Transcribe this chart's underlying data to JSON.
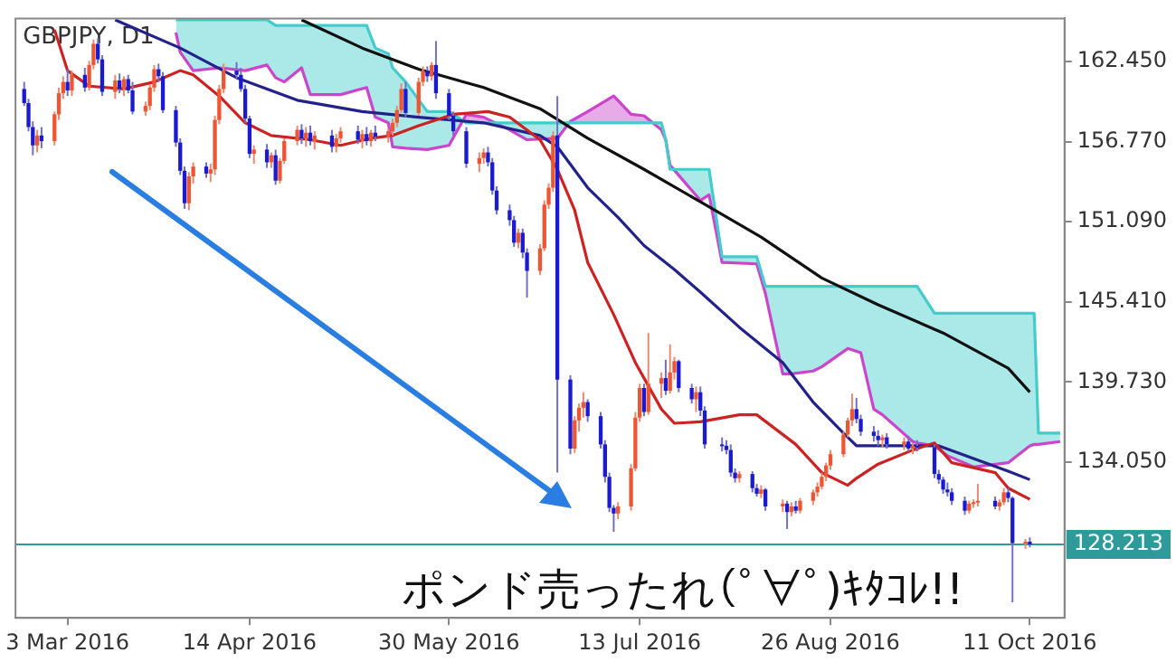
{
  "chart_data": {
    "type": "candlestick",
    "title": "GBPJPY, D1",
    "x": [
      "2016-02-22",
      "2016-02-23",
      "2016-02-24",
      "2016-02-25",
      "2016-02-26",
      "2016-02-29",
      "2016-03-01",
      "2016-03-02",
      "2016-03-03",
      "2016-03-04",
      "2016-03-07",
      "2016-03-08",
      "2016-03-09",
      "2016-03-10",
      "2016-03-11",
      "2016-03-14",
      "2016-03-15",
      "2016-03-16",
      "2016-03-17",
      "2016-03-18",
      "2016-03-21",
      "2016-03-22",
      "2016-03-23",
      "2016-03-24",
      "2016-03-25",
      "2016-03-28",
      "2016-03-29",
      "2016-03-30",
      "2016-03-31",
      "2016-04-01",
      "2016-04-04",
      "2016-04-05",
      "2016-04-06",
      "2016-04-07",
      "2016-04-08",
      "2016-04-11",
      "2016-04-12",
      "2016-04-13",
      "2016-04-14",
      "2016-04-15",
      "2016-04-18",
      "2016-04-19",
      "2016-04-20",
      "2016-04-21",
      "2016-04-22",
      "2016-04-25",
      "2016-04-26",
      "2016-04-27",
      "2016-04-28",
      "2016-04-29",
      "2016-05-03",
      "2016-05-04",
      "2016-05-05",
      "2016-05-09",
      "2016-05-10",
      "2016-05-11",
      "2016-05-12",
      "2016-05-13",
      "2016-05-16",
      "2016-05-17",
      "2016-05-18",
      "2016-05-19",
      "2016-05-20",
      "2016-05-23",
      "2016-05-24",
      "2016-05-25",
      "2016-05-26",
      "2016-05-27",
      "2016-05-30",
      "2016-05-31",
      "2016-06-03",
      "2016-06-06",
      "2016-06-07",
      "2016-06-08",
      "2016-06-09",
      "2016-06-10",
      "2016-06-13",
      "2016-06-14",
      "2016-06-15",
      "2016-06-16",
      "2016-06-17",
      "2016-06-20",
      "2016-06-21",
      "2016-06-22",
      "2016-06-23",
      "2016-06-24",
      "2016-06-27",
      "2016-06-28",
      "2016-06-29",
      "2016-06-30",
      "2016-07-01",
      "2016-07-04",
      "2016-07-05",
      "2016-07-06",
      "2016-07-07",
      "2016-07-08",
      "2016-07-11",
      "2016-07-12",
      "2016-07-13",
      "2016-07-14",
      "2016-07-15",
      "2016-07-18",
      "2016-07-19",
      "2016-07-20",
      "2016-07-21",
      "2016-07-22",
      "2016-07-25",
      "2016-07-26",
      "2016-07-27",
      "2016-07-28",
      "2016-08-01",
      "2016-08-02",
      "2016-08-03",
      "2016-08-04",
      "2016-08-05",
      "2016-08-08",
      "2016-08-09",
      "2016-08-10",
      "2016-08-11",
      "2016-08-15",
      "2016-08-16",
      "2016-08-17",
      "2016-08-18",
      "2016-08-19",
      "2016-08-22",
      "2016-08-23",
      "2016-08-24",
      "2016-08-25",
      "2016-08-26",
      "2016-08-29",
      "2016-08-30",
      "2016-08-31",
      "2016-09-01",
      "2016-09-02",
      "2016-09-05",
      "2016-09-06",
      "2016-09-07",
      "2016-09-08",
      "2016-09-12",
      "2016-09-13",
      "2016-09-14",
      "2016-09-15",
      "2016-09-19",
      "2016-09-20",
      "2016-09-21",
      "2016-09-22",
      "2016-09-23",
      "2016-09-26",
      "2016-09-27",
      "2016-09-28",
      "2016-09-29",
      "2016-10-03",
      "2016-10-04",
      "2016-10-05",
      "2016-10-06",
      "2016-10-07",
      "2016-10-10",
      "2016-10-11"
    ],
    "ohlc": [
      [
        160.5,
        161.0,
        159.3,
        159.5
      ],
      [
        159.5,
        159.8,
        157.5,
        157.8
      ],
      [
        157.8,
        158.2,
        155.8,
        156.5
      ],
      [
        156.5,
        157.6,
        156.0,
        157.2
      ],
      [
        157.2,
        157.8,
        156.3,
        156.8
      ],
      [
        156.8,
        158.9,
        156.5,
        158.7
      ],
      [
        158.7,
        160.6,
        158.3,
        160.2
      ],
      [
        160.2,
        161.4,
        159.8,
        161.0
      ],
      [
        161.0,
        161.9,
        160.0,
        160.4
      ],
      [
        160.4,
        161.8,
        160.0,
        161.5
      ],
      [
        161.5,
        162.0,
        160.3,
        160.6
      ],
      [
        160.6,
        162.5,
        160.4,
        162.2
      ],
      [
        162.2,
        164.0,
        161.9,
        163.7
      ],
      [
        163.7,
        164.1,
        162.3,
        162.6
      ],
      [
        162.6,
        162.9,
        160.0,
        160.3
      ],
      [
        160.3,
        161.5,
        159.8,
        161.1
      ],
      [
        161.1,
        161.6,
        160.2,
        160.5
      ],
      [
        160.5,
        161.4,
        160.0,
        161.2
      ],
      [
        161.2,
        161.5,
        160.2,
        160.4
      ],
      [
        160.4,
        161.0,
        158.7,
        158.9
      ],
      [
        158.9,
        159.6,
        158.6,
        159.3
      ],
      [
        159.3,
        160.8,
        159.0,
        160.6
      ],
      [
        160.6,
        162.2,
        160.3,
        161.9
      ],
      [
        161.9,
        162.3,
        161.0,
        161.4
      ],
      [
        161.4,
        161.7,
        158.8,
        159.0
      ],
      [
        159.0,
        159.3,
        156.4,
        156.7
      ],
      [
        156.7,
        157.0,
        154.4,
        154.7
      ],
      [
        154.7,
        155.0,
        152.0,
        152.4
      ],
      [
        152.4,
        154.6,
        151.9,
        154.3
      ],
      [
        154.3,
        155.3,
        153.8,
        155.0
      ],
      [
        155.0,
        155.3,
        154.2,
        154.5
      ],
      [
        154.5,
        155.2,
        153.9,
        154.8
      ],
      [
        154.8,
        158.6,
        154.4,
        158.3
      ],
      [
        158.3,
        160.8,
        158.0,
        160.5
      ],
      [
        160.5,
        162.3,
        160.2,
        161.8
      ],
      [
        161.8,
        162.4,
        161.2,
        161.5
      ],
      [
        161.5,
        162.0,
        160.3,
        160.5
      ],
      [
        160.5,
        160.8,
        158.1,
        158.4
      ],
      [
        158.4,
        158.6,
        155.6,
        155.9
      ],
      [
        155.9,
        156.5,
        155.2,
        156.2
      ],
      [
        156.2,
        156.6,
        154.9,
        155.3
      ],
      [
        155.3,
        156.0,
        154.9,
        155.8
      ],
      [
        155.8,
        156.2,
        153.7,
        154.0
      ],
      [
        154.0,
        155.6,
        153.8,
        155.4
      ],
      [
        155.4,
        157.0,
        155.2,
        156.8
      ],
      [
        156.8,
        157.9,
        156.5,
        157.6
      ],
      [
        157.6,
        158.0,
        156.6,
        157.0
      ],
      [
        157.0,
        157.8,
        156.4,
        157.4
      ],
      [
        157.4,
        157.9,
        156.5,
        156.8
      ],
      [
        156.8,
        157.5,
        156.2,
        157.2
      ],
      [
        157.2,
        157.6,
        156.0,
        156.4
      ],
      [
        156.4,
        157.3,
        156.0,
        157.0
      ],
      [
        157.0,
        157.8,
        156.7,
        157.5
      ],
      [
        157.5,
        157.9,
        156.6,
        156.9
      ],
      [
        156.9,
        157.6,
        156.3,
        157.3
      ],
      [
        157.3,
        157.8,
        156.5,
        156.8
      ],
      [
        156.8,
        157.6,
        156.4,
        157.4
      ],
      [
        157.4,
        157.9,
        156.8,
        157.1
      ],
      [
        157.1,
        157.7,
        156.7,
        157.5
      ],
      [
        157.5,
        158.4,
        157.2,
        158.1
      ],
      [
        158.1,
        159.3,
        157.8,
        159.0
      ],
      [
        159.0,
        160.9,
        158.8,
        160.5
      ],
      [
        160.5,
        161.0,
        158.5,
        158.8
      ],
      [
        158.8,
        161.3,
        158.6,
        161.0
      ],
      [
        161.0,
        162.1,
        160.7,
        161.8
      ],
      [
        161.8,
        162.1,
        161.0,
        161.4
      ],
      [
        161.4,
        162.4,
        161.1,
        162.2
      ],
      [
        162.2,
        163.9,
        159.8,
        160.2
      ],
      [
        160.2,
        160.5,
        158.3,
        158.6
      ],
      [
        158.6,
        158.9,
        157.2,
        157.5
      ],
      [
        157.5,
        157.8,
        154.9,
        155.2
      ],
      [
        155.2,
        156.0,
        154.6,
        155.6
      ],
      [
        155.6,
        156.3,
        155.2,
        156.0
      ],
      [
        156.0,
        156.4,
        155.0,
        155.3
      ],
      [
        155.3,
        155.6,
        153.0,
        153.3
      ],
      [
        153.3,
        153.6,
        151.6,
        151.9
      ],
      [
        151.9,
        152.3,
        150.8,
        151.2
      ],
      [
        151.2,
        151.5,
        149.3,
        149.6
      ],
      [
        149.6,
        150.6,
        149.2,
        150.3
      ],
      [
        150.3,
        150.6,
        148.5,
        148.9
      ],
      [
        148.9,
        149.2,
        145.7,
        147.6
      ],
      [
        147.6,
        149.5,
        147.3,
        149.2
      ],
      [
        149.2,
        152.6,
        149.0,
        152.3
      ],
      [
        152.3,
        153.8,
        152.0,
        153.5
      ],
      [
        153.5,
        157.5,
        153.2,
        157.2
      ],
      [
        157.2,
        160.0,
        133.3,
        139.9
      ],
      [
        139.9,
        140.2,
        134.6,
        135.0
      ],
      [
        135.0,
        137.3,
        134.7,
        137.0
      ],
      [
        137.0,
        138.2,
        136.2,
        137.9
      ],
      [
        137.9,
        139.0,
        137.2,
        138.3
      ],
      [
        138.3,
        138.5,
        136.9,
        137.3
      ],
      [
        137.3,
        137.6,
        135.0,
        135.3
      ],
      [
        135.3,
        135.6,
        132.6,
        133.0
      ],
      [
        133.0,
        133.3,
        130.5,
        130.8
      ],
      [
        130.8,
        131.0,
        129.1,
        130.4
      ],
      [
        130.4,
        131.2,
        130.0,
        130.9
      ],
      [
        130.9,
        133.9,
        130.6,
        133.6
      ],
      [
        133.6,
        137.6,
        133.4,
        137.2
      ],
      [
        137.2,
        139.6,
        136.9,
        139.3
      ],
      [
        139.3,
        139.6,
        137.3,
        137.6
      ],
      [
        137.6,
        143.2,
        137.4,
        139.6
      ],
      [
        139.6,
        140.4,
        138.6,
        140.0
      ],
      [
        140.0,
        141.3,
        138.8,
        139.1
      ],
      [
        139.1,
        142.4,
        138.9,
        140.4
      ],
      [
        140.4,
        141.5,
        139.9,
        141.2
      ],
      [
        141.2,
        141.3,
        139.0,
        139.3
      ],
      [
        139.3,
        139.6,
        138.2,
        138.5
      ],
      [
        138.5,
        139.4,
        137.6,
        139.0
      ],
      [
        139.0,
        139.4,
        137.3,
        137.7
      ],
      [
        137.7,
        138.0,
        135.0,
        135.3
      ],
      [
        135.3,
        135.8,
        134.8,
        135.2
      ],
      [
        135.2,
        135.6,
        134.6,
        134.9
      ],
      [
        134.9,
        135.3,
        133.0,
        133.3
      ],
      [
        133.3,
        133.6,
        132.6,
        132.9
      ],
      [
        132.9,
        133.4,
        132.6,
        133.2
      ],
      [
        133.2,
        133.4,
        131.9,
        132.2
      ],
      [
        132.2,
        132.5,
        131.6,
        131.8
      ],
      [
        131.8,
        132.4,
        131.5,
        132.1
      ],
      [
        132.1,
        132.2,
        130.6,
        130.9
      ],
      [
        130.9,
        131.4,
        130.5,
        131.1
      ],
      [
        131.1,
        131.3,
        129.3,
        130.5
      ],
      [
        130.5,
        131.2,
        130.2,
        130.9
      ],
      [
        130.9,
        131.3,
        130.4,
        130.6
      ],
      [
        130.6,
        131.5,
        130.4,
        131.3
      ],
      [
        131.3,
        132.1,
        131.0,
        131.9
      ],
      [
        131.9,
        132.6,
        131.6,
        132.3
      ],
      [
        132.3,
        133.3,
        132.1,
        133.0
      ],
      [
        133.0,
        134.0,
        132.7,
        133.8
      ],
      [
        133.8,
        134.9,
        133.5,
        134.6
      ],
      [
        134.6,
        136.2,
        134.4,
        136.0
      ],
      [
        136.0,
        137.2,
        135.8,
        137.0
      ],
      [
        137.0,
        138.9,
        136.6,
        137.8
      ],
      [
        137.8,
        138.6,
        136.8,
        137.1
      ],
      [
        137.1,
        137.4,
        135.9,
        136.2
      ],
      [
        136.2,
        136.6,
        135.5,
        135.9
      ],
      [
        135.9,
        136.3,
        135.2,
        135.6
      ],
      [
        135.6,
        136.0,
        135.1,
        135.8
      ],
      [
        135.8,
        136.1,
        135.0,
        135.3
      ],
      [
        135.3,
        135.8,
        134.9,
        135.5
      ],
      [
        135.5,
        135.9,
        134.8,
        135.0
      ],
      [
        135.0,
        135.4,
        134.6,
        135.2
      ],
      [
        135.2,
        135.6,
        134.8,
        135.1
      ],
      [
        135.1,
        135.3,
        132.9,
        133.2
      ],
      [
        133.2,
        133.5,
        132.5,
        132.8
      ],
      [
        132.8,
        133.0,
        131.8,
        132.1
      ],
      [
        132.1,
        132.6,
        131.6,
        131.9
      ],
      [
        131.9,
        132.2,
        131.0,
        131.3
      ],
      [
        131.3,
        131.6,
        130.3,
        130.6
      ],
      [
        130.6,
        131.3,
        130.4,
        131.1
      ],
      [
        131.1,
        131.4,
        130.8,
        131.2
      ],
      [
        131.2,
        132.5,
        130.9,
        131.3
      ],
      [
        131.3,
        131.6,
        130.7,
        130.9
      ],
      [
        130.9,
        131.4,
        130.6,
        131.2
      ],
      [
        131.2,
        132.2,
        131.0,
        131.9
      ],
      [
        131.9,
        132.2,
        131.2,
        131.5
      ],
      [
        131.5,
        131.6,
        124.1,
        128.3
      ],
      [
        128.3,
        128.6,
        127.9,
        128.4
      ],
      [
        128.4,
        128.7,
        128.0,
        128.2
      ]
    ],
    "series": [
      {
        "type": "line",
        "color": "#cc44cc",
        "x": [
          "2016-03-28",
          "2016-03-29",
          "2016-04-01",
          "2016-04-07",
          "2016-04-13",
          "2016-04-18",
          "2016-04-20",
          "2016-04-22",
          "2016-04-26",
          "2016-04-28",
          "2016-05-05",
          "2016-05-11",
          "2016-05-13",
          "2016-05-16",
          "2016-05-17",
          "2016-05-20",
          "2016-05-25",
          "2016-05-30",
          "2016-06-03",
          "2016-06-07",
          "2016-06-13",
          "2016-06-17",
          "2016-06-24",
          "2016-06-27",
          "2016-07-01",
          "2016-07-07",
          "2016-07-11",
          "2016-07-14",
          "2016-07-18",
          "2016-07-19",
          "2016-07-20",
          "2016-07-27",
          "2016-07-29",
          "2016-08-01",
          "2016-08-09",
          "2016-08-11",
          "2016-08-15",
          "2016-08-17",
          "2016-08-22",
          "2016-08-24",
          "2016-08-30",
          "2016-09-02",
          "2016-09-05",
          "2016-09-07",
          "2016-09-14",
          "2016-09-15",
          "2016-09-19",
          "2016-09-22",
          "2016-09-28",
          "2016-10-06",
          "2016-10-11",
          "2016-10-12",
          "2016-10-13",
          "2016-10-18"
        ],
        "values": [
          164.5,
          163.1,
          161.8,
          162.0,
          161.8,
          162.2,
          161.3,
          161.0,
          162.0,
          160.1,
          160.1,
          160.6,
          158.5,
          158.1,
          156.4,
          156.3,
          156.2,
          156.5,
          158.7,
          158.5,
          157.6,
          156.9,
          157.0,
          158.2,
          158.9,
          160.0,
          158.7,
          158.6,
          157.6,
          156.9,
          155.1,
          152.6,
          153.0,
          148.2,
          148.1,
          146.0,
          140.3,
          140.3,
          140.5,
          140.8,
          142.1,
          141.8,
          137.8,
          137.4,
          135.5,
          135.4,
          135.2,
          134.5,
          133.7,
          134.0,
          135.2,
          135.3,
          135.3,
          135.5
        ]
      },
      {
        "type": "line",
        "color": "#44cccc",
        "x": [
          "2016-03-28",
          "2016-03-29",
          "2016-04-01",
          "2016-04-07",
          "2016-04-13",
          "2016-04-18",
          "2016-04-20",
          "2016-04-22",
          "2016-04-26",
          "2016-04-28",
          "2016-05-05",
          "2016-05-11",
          "2016-05-13",
          "2016-05-16",
          "2016-05-17",
          "2016-05-20",
          "2016-05-25",
          "2016-05-30",
          "2016-06-03",
          "2016-06-07",
          "2016-06-13",
          "2016-06-17",
          "2016-06-24",
          "2016-06-27",
          "2016-07-01",
          "2016-07-07",
          "2016-07-11",
          "2016-07-14",
          "2016-07-18",
          "2016-07-19",
          "2016-07-20",
          "2016-07-27",
          "2016-07-29",
          "2016-08-01",
          "2016-08-09",
          "2016-08-11",
          "2016-08-15",
          "2016-08-17",
          "2016-08-22",
          "2016-08-24",
          "2016-08-30",
          "2016-09-02",
          "2016-09-05",
          "2016-09-07",
          "2016-09-14",
          "2016-09-15",
          "2016-09-19",
          "2016-09-22",
          "2016-09-28",
          "2016-10-06",
          "2016-10-11",
          "2016-10-12",
          "2016-10-13",
          "2016-10-18"
        ],
        "values": [
          165.4,
          165.4,
          165.4,
          165.4,
          165.4,
          165.4,
          165.0,
          165.0,
          165.0,
          165.0,
          165.0,
          165.0,
          163.4,
          163.0,
          162.0,
          161.0,
          158.9,
          158.9,
          158.1,
          158.1,
          158.1,
          158.1,
          158.1,
          158.1,
          158.1,
          158.1,
          158.1,
          158.1,
          158.1,
          156.9,
          154.8,
          154.8,
          154.8,
          148.6,
          148.6,
          146.5,
          146.5,
          146.5,
          146.5,
          146.5,
          146.5,
          146.5,
          146.5,
          146.5,
          146.5,
          146.5,
          144.6,
          144.6,
          144.6,
          144.6,
          144.6,
          144.6,
          136.1,
          136.1
        ],
        "lower": [
          164.5,
          163.1,
          161.8,
          162.0,
          161.8,
          162.2,
          161.3,
          161.0,
          162.0,
          160.1,
          160.1,
          160.6,
          158.5,
          158.1,
          156.4,
          156.3,
          156.2,
          156.5,
          158.7,
          158.5,
          157.6,
          156.9,
          157.0,
          158.2,
          158.9,
          160.0,
          158.7,
          158.6,
          157.6,
          156.9,
          155.1,
          152.6,
          153.0,
          148.2,
          148.1,
          146.0,
          140.3,
          140.3,
          140.5,
          140.8,
          142.1,
          141.8,
          137.8,
          137.4,
          135.5,
          135.4,
          135.2,
          134.5,
          133.7,
          134.0,
          135.2,
          135.3,
          135.3,
          135.5
        ],
        "upper": [
          165.4,
          165.4,
          165.4,
          165.4,
          165.4,
          165.4,
          165.0,
          165.0,
          165.0,
          165.0,
          165.0,
          165.0,
          163.4,
          163.0,
          162.0,
          161.0,
          158.9,
          158.9,
          158.1,
          158.1,
          158.1,
          158.1,
          158.1,
          158.1,
          158.1,
          158.1,
          158.1,
          158.1,
          158.1,
          156.9,
          154.8,
          154.8,
          154.8,
          148.6,
          148.6,
          146.5,
          146.5,
          146.5,
          146.5,
          146.5,
          146.5,
          146.5,
          146.5,
          146.5,
          146.5,
          146.5,
          144.6,
          144.6,
          144.6,
          144.6,
          144.6,
          144.6,
          136.1,
          136.1
        ]
      },
      {
        "type": "line",
        "color": "#111111",
        "x": [
          "2016-04-26",
          "2016-05-10",
          "2016-05-23",
          "2016-06-07",
          "2016-06-20",
          "2016-07-01",
          "2016-07-14",
          "2016-07-27",
          "2016-08-10",
          "2016-08-24",
          "2016-09-06",
          "2016-09-21",
          "2016-10-06",
          "2016-10-11"
        ],
        "values": [
          165.4,
          163.4,
          161.9,
          160.6,
          159.1,
          157,
          154.8,
          152.5,
          150,
          147.1,
          145.2,
          143.2,
          140.7,
          139
        ]
      },
      {
        "type": "line",
        "color": "#22228a",
        "x": [
          "2016-03-14",
          "2016-03-29",
          "2016-04-11",
          "2016-04-25",
          "2016-05-10",
          "2016-05-23",
          "2016-06-07",
          "2016-06-20",
          "2016-06-24",
          "2016-07-01",
          "2016-07-08",
          "2016-07-14",
          "2016-07-21",
          "2016-07-27",
          "2016-08-05",
          "2016-08-15",
          "2016-08-22",
          "2016-08-29",
          "2016-09-01",
          "2016-09-13",
          "2016-09-20",
          "2016-09-28",
          "2016-10-06",
          "2016-10-11"
        ],
        "values": [
          165.4,
          163.4,
          161.3,
          159.7,
          158.9,
          158.5,
          158.1,
          157.2,
          156.4,
          153.5,
          151.4,
          149.4,
          147.7,
          146.1,
          143.6,
          141.1,
          138.3,
          136.1,
          135.2,
          135.2,
          135.2,
          134.3,
          133.4,
          132.8
        ]
      },
      {
        "type": "line",
        "color": "#cc2222",
        "x": [
          "2016-02-29",
          "2016-03-03",
          "2016-03-08",
          "2016-03-16",
          "2016-03-23",
          "2016-03-29",
          "2016-04-01",
          "2016-04-07",
          "2016-04-13",
          "2016-04-19",
          "2016-04-28",
          "2016-05-05",
          "2016-05-12",
          "2016-05-17",
          "2016-05-23",
          "2016-05-31",
          "2016-06-08",
          "2016-06-13",
          "2016-06-20",
          "2016-06-24",
          "2016-06-28",
          "2016-07-01",
          "2016-07-07",
          "2016-07-12",
          "2016-07-18",
          "2016-07-21",
          "2016-07-27",
          "2016-08-05",
          "2016-08-09",
          "2016-08-18",
          "2016-08-24",
          "2016-08-30",
          "2016-09-01",
          "2016-09-06",
          "2016-09-14",
          "2016-09-19",
          "2016-09-23",
          "2016-10-03",
          "2016-10-06",
          "2016-10-11"
        ],
        "values": [
          164.7,
          161.8,
          160.7,
          160.5,
          161,
          161.8,
          161.5,
          160,
          158.1,
          157.2,
          156.9,
          156.5,
          157,
          157.2,
          157.9,
          158.7,
          158.9,
          158.5,
          156.9,
          154.8,
          151.9,
          148.2,
          144.5,
          141.1,
          137.8,
          136.8,
          136.9,
          137.4,
          137.4,
          135.3,
          133.3,
          132.4,
          132.9,
          133.9,
          134.9,
          135.4,
          134,
          133.3,
          132.2,
          131.4
        ]
      }
    ],
    "xlim": [
      "2016-02-20",
      "2016-10-19"
    ],
    "xticks": [
      {
        "value": "2016-03-03",
        "label": "3 Mar 2016"
      },
      {
        "value": "2016-04-14",
        "label": "14 Apr 2016"
      },
      {
        "value": "2016-05-30",
        "label": "30 May 2016"
      },
      {
        "value": "2016-07-13",
        "label": "13 Jul 2016"
      },
      {
        "value": "2016-08-26",
        "label": "26 Aug 2016"
      },
      {
        "value": "2016-10-11",
        "label": "11 Oct 2016"
      }
    ],
    "ylim": [
      123,
      165.5
    ],
    "yticks": [
      {
        "value": 134.05,
        "label": "134.050"
      },
      {
        "value": 139.73,
        "label": "139.730"
      },
      {
        "value": 145.41,
        "label": "145.410"
      },
      {
        "value": 151.09,
        "label": "151.090"
      },
      {
        "value": 156.77,
        "label": "156.770"
      },
      {
        "value": 162.45,
        "label": "162.450"
      }
    ],
    "ref_lines": [
      {
        "axis": "y",
        "value": 128.213,
        "label": "128.213",
        "color": "#2e9a9a"
      }
    ],
    "annotations": [
      "ポンド売ったれ(ﾟ∀ﾟ)ｷﾀｺﾚ!!"
    ],
    "grid": false,
    "legend": false
  }
}
